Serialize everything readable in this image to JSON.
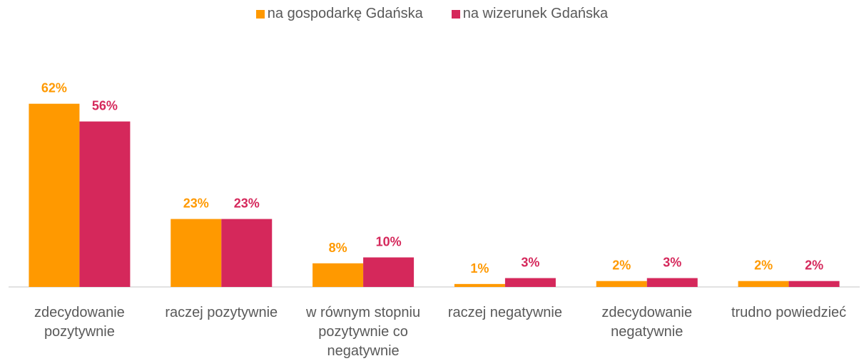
{
  "chart_data": {
    "type": "bar",
    "categories": [
      "zdecydowanie pozytywnie",
      "raczej pozytywnie",
      "w równym stopniu pozytywnie co negatywnie",
      "raczej negatywnie",
      "zdecydowanie negatywnie",
      "trudno powiedzieć"
    ],
    "series": [
      {
        "name": "na gospodarkę Gdańska",
        "color": "#ff9900",
        "values": [
          62,
          23,
          8,
          1,
          2,
          2
        ],
        "value_labels": [
          "62%",
          "23%",
          "8%",
          "1%",
          "2%",
          "2%"
        ]
      },
      {
        "name": "na wizerunek Gdańska",
        "color": "#d5285b",
        "values": [
          56,
          23,
          10,
          3,
          3,
          2
        ],
        "value_labels": [
          "56%",
          "23%",
          "10%",
          "3%",
          "3%",
          "2%"
        ]
      }
    ],
    "legend": "top"
  }
}
